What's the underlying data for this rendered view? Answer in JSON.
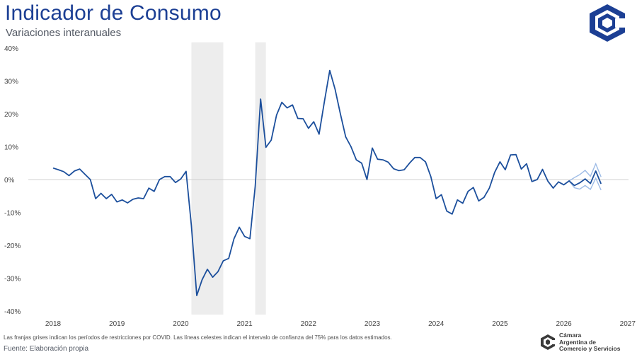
{
  "header": {
    "title": "Indicador de Consumo",
    "subtitle": "Variaciones interanuales"
  },
  "footer": {
    "note": "Las franjas grises indican los períodos de restricciones por COVID. Las líneas celestes indican el intervalo de confianza del 75% para los datos estimados.",
    "source": "Fuente: Elaboración propia"
  },
  "organization": {
    "line1": "Cámara",
    "line2": "Argentina de",
    "line3": "Comercio y Servicios"
  },
  "colors": {
    "series": "#1c4f9c",
    "confidence": "#9dbbe6",
    "shading": "#ededed",
    "zero_line": "#d0d0d0",
    "title": "#1c3f94"
  },
  "chart_data": {
    "type": "line",
    "title": "Indicador de Consumo",
    "subtitle": "Variaciones interanuales",
    "xlabel": "",
    "ylabel": "",
    "x_ticks": [
      "2018",
      "2019",
      "2020",
      "2021",
      "2022",
      "2023",
      "2024",
      "2025",
      "2026",
      "2027"
    ],
    "y_ticks": [
      "40%",
      "30%",
      "20%",
      "10%",
      "0%",
      "-10%",
      "-20%",
      "-30%",
      "-40%"
    ],
    "ylim": [
      -40,
      40
    ],
    "xlim": [
      "2018-01",
      "2027-01"
    ],
    "grid": false,
    "legend": "none",
    "shaded_periods": [
      {
        "start": "2020-03",
        "end": "2020-09"
      },
      {
        "start": "2021-03",
        "end": "2021-05"
      }
    ],
    "series": [
      {
        "values": [
          {
            "x": "2018-01",
            "y": 3.5
          },
          {
            "x": "2018-02",
            "y": 3.0
          },
          {
            "x": "2018-03",
            "y": 2.4
          },
          {
            "x": "2018-04",
            "y": 1.2
          },
          {
            "x": "2018-05",
            "y": 2.6
          },
          {
            "x": "2018-06",
            "y": 3.2
          },
          {
            "x": "2018-07",
            "y": 1.6
          },
          {
            "x": "2018-08",
            "y": 0.0
          },
          {
            "x": "2018-09",
            "y": -5.8
          },
          {
            "x": "2018-10",
            "y": -4.2
          },
          {
            "x": "2018-11",
            "y": -5.8
          },
          {
            "x": "2018-12",
            "y": -4.5
          },
          {
            "x": "2019-01",
            "y": -6.8
          },
          {
            "x": "2019-02",
            "y": -6.2
          },
          {
            "x": "2019-03",
            "y": -7.1
          },
          {
            "x": "2019-04",
            "y": -6.0
          },
          {
            "x": "2019-05",
            "y": -5.6
          },
          {
            "x": "2019-06",
            "y": -5.8
          },
          {
            "x": "2019-07",
            "y": -2.6
          },
          {
            "x": "2019-08",
            "y": -3.6
          },
          {
            "x": "2019-09",
            "y": 0.0
          },
          {
            "x": "2019-10",
            "y": 0.9
          },
          {
            "x": "2019-11",
            "y": 0.9
          },
          {
            "x": "2019-12",
            "y": -0.9
          },
          {
            "x": "2020-01",
            "y": 0.2
          },
          {
            "x": "2020-02",
            "y": 2.5
          },
          {
            "x": "2020-03",
            "y": -14.0
          },
          {
            "x": "2020-04",
            "y": -35.3
          },
          {
            "x": "2020-05",
            "y": -30.5
          },
          {
            "x": "2020-06",
            "y": -27.3
          },
          {
            "x": "2020-07",
            "y": -29.7
          },
          {
            "x": "2020-08",
            "y": -28.0
          },
          {
            "x": "2020-09",
            "y": -24.7
          },
          {
            "x": "2020-10",
            "y": -24.0
          },
          {
            "x": "2020-11",
            "y": -18.0
          },
          {
            "x": "2020-12",
            "y": -14.5
          },
          {
            "x": "2021-01",
            "y": -17.3
          },
          {
            "x": "2021-02",
            "y": -18.0
          },
          {
            "x": "2021-03",
            "y": -2.0
          },
          {
            "x": "2021-04",
            "y": 24.5
          },
          {
            "x": "2021-05",
            "y": 9.8
          },
          {
            "x": "2021-06",
            "y": 12.0
          },
          {
            "x": "2021-07",
            "y": 19.6
          },
          {
            "x": "2021-08",
            "y": 23.5
          },
          {
            "x": "2021-09",
            "y": 21.8
          },
          {
            "x": "2021-10",
            "y": 22.7
          },
          {
            "x": "2021-11",
            "y": 18.6
          },
          {
            "x": "2021-12",
            "y": 18.5
          },
          {
            "x": "2022-01",
            "y": 15.6
          },
          {
            "x": "2022-02",
            "y": 17.6
          },
          {
            "x": "2022-03",
            "y": 13.8
          },
          {
            "x": "2022-04",
            "y": 23.8
          },
          {
            "x": "2022-05",
            "y": 33.2
          },
          {
            "x": "2022-06",
            "y": 27.5
          },
          {
            "x": "2022-07",
            "y": 20.0
          },
          {
            "x": "2022-08",
            "y": 13.0
          },
          {
            "x": "2022-09",
            "y": 10.0
          },
          {
            "x": "2022-10",
            "y": 6.0
          },
          {
            "x": "2022-11",
            "y": 5.0
          },
          {
            "x": "2022-12",
            "y": 0.0
          },
          {
            "x": "2023-01",
            "y": 9.6
          },
          {
            "x": "2023-02",
            "y": 6.2
          },
          {
            "x": "2023-03",
            "y": 6.0
          },
          {
            "x": "2023-04",
            "y": 5.3
          },
          {
            "x": "2023-05",
            "y": 3.3
          },
          {
            "x": "2023-06",
            "y": 2.7
          },
          {
            "x": "2023-07",
            "y": 3.0
          },
          {
            "x": "2023-08",
            "y": 5.0
          },
          {
            "x": "2023-09",
            "y": 6.7
          },
          {
            "x": "2023-10",
            "y": 6.7
          },
          {
            "x": "2023-11",
            "y": 5.4
          },
          {
            "x": "2023-12",
            "y": 0.9
          },
          {
            "x": "2024-01",
            "y": -5.8
          },
          {
            "x": "2024-02",
            "y": -4.6
          },
          {
            "x": "2024-03",
            "y": -9.6
          },
          {
            "x": "2024-04",
            "y": -10.5
          },
          {
            "x": "2024-05",
            "y": -6.2
          },
          {
            "x": "2024-06",
            "y": -7.2
          },
          {
            "x": "2024-07",
            "y": -3.6
          },
          {
            "x": "2024-08",
            "y": -2.4
          },
          {
            "x": "2024-09",
            "y": -6.5
          },
          {
            "x": "2024-10",
            "y": -5.4
          },
          {
            "x": "2024-11",
            "y": -2.6
          },
          {
            "x": "2024-12",
            "y": 2.2
          },
          {
            "x": "2025-01",
            "y": 5.4
          },
          {
            "x": "2025-02",
            "y": 3.0
          },
          {
            "x": "2025-03",
            "y": 7.5
          },
          {
            "x": "2025-04",
            "y": 7.6
          },
          {
            "x": "2025-05",
            "y": 3.2
          },
          {
            "x": "2025-06",
            "y": 4.8
          },
          {
            "x": "2025-07",
            "y": -0.6
          },
          {
            "x": "2025-08",
            "y": 0.0
          },
          {
            "x": "2025-09",
            "y": 3.1
          },
          {
            "x": "2025-10",
            "y": -0.5
          },
          {
            "x": "2025-11",
            "y": -2.6
          },
          {
            "x": "2025-12",
            "y": -0.7
          },
          {
            "x": "2026-01",
            "y": -1.6
          },
          {
            "x": "2026-02",
            "y": -0.4
          },
          {
            "x": "2026-03",
            "y": -1.8
          },
          {
            "x": "2026-04",
            "y": -1.0
          },
          {
            "x": "2026-05",
            "y": 0.2
          },
          {
            "x": "2026-06",
            "y": -1.2
          },
          {
            "x": "2026-07",
            "y": 2.6
          },
          {
            "x": "2026-08",
            "y": -1.3
          }
        ]
      }
    ],
    "confidence_band": {
      "upper": [
        {
          "x": "2026-02",
          "y": -0.4
        },
        {
          "x": "2026-03",
          "y": 0.6
        },
        {
          "x": "2026-04",
          "y": 1.5
        },
        {
          "x": "2026-05",
          "y": 2.8
        },
        {
          "x": "2026-06",
          "y": 1.0
        },
        {
          "x": "2026-07",
          "y": 4.8
        },
        {
          "x": "2026-08",
          "y": 0.8
        }
      ],
      "lower": [
        {
          "x": "2026-02",
          "y": -0.4
        },
        {
          "x": "2026-03",
          "y": -2.5
        },
        {
          "x": "2026-04",
          "y": -2.9
        },
        {
          "x": "2026-05",
          "y": -1.8
        },
        {
          "x": "2026-06",
          "y": -3.0
        },
        {
          "x": "2026-07",
          "y": 0.4
        },
        {
          "x": "2026-08",
          "y": -3.2
        }
      ]
    }
  }
}
